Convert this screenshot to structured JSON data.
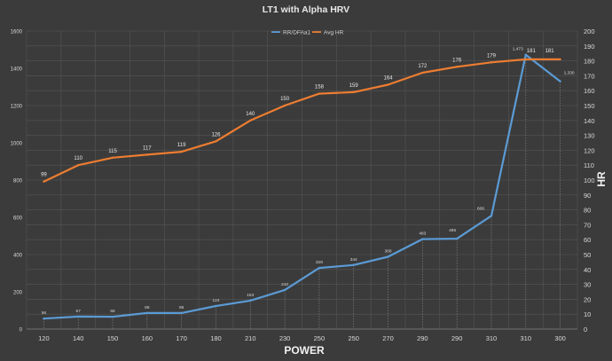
{
  "chart_data": {
    "type": "line",
    "title": "LT1 with Alpha HRV",
    "xlabel": "POWER",
    "ylabel": "",
    "y2label": "HR",
    "categories": [
      "120",
      "140",
      "150",
      "160",
      "170",
      "180",
      "210",
      "230",
      "250",
      "250",
      "270",
      "290",
      "290",
      "310",
      "310",
      "300"
    ],
    "ylim": [
      0,
      1600
    ],
    "yticks": [
      0,
      200,
      400,
      600,
      800,
      1000,
      1200,
      1400,
      1600
    ],
    "y2lim": [
      0,
      200
    ],
    "y2ticks": [
      0,
      10,
      20,
      30,
      40,
      50,
      60,
      70,
      80,
      90,
      100,
      110,
      120,
      130,
      140,
      150,
      160,
      170,
      180,
      190,
      200
    ],
    "grid": true,
    "legend_position": "top",
    "series": [
      {
        "name": "RR/DFAa1",
        "axis": "left",
        "color": "#5b9bd5",
        "values": [
          56,
          67,
          66,
          86,
          86,
          124,
          153,
          210,
          328,
          344,
          388,
          483,
          485,
          608,
          1473,
          1330
        ],
        "labels": [
          "56",
          "67",
          "66",
          "86",
          "86",
          "124",
          "153",
          "210",
          "328",
          "344",
          "388",
          "483",
          "485",
          "608",
          "1,473",
          "1,330"
        ]
      },
      {
        "name": "Avg HR",
        "axis": "right",
        "color": "#ed7d31",
        "values": [
          99,
          110,
          115,
          117,
          119,
          126,
          140,
          150,
          158,
          159,
          164,
          172,
          176,
          179,
          181,
          181
        ],
        "labels": [
          "99",
          "110",
          "115",
          "117",
          "119",
          "126",
          "140",
          "150",
          "158",
          "159",
          "164",
          "172",
          "176",
          "179",
          "181",
          "181"
        ]
      }
    ]
  }
}
